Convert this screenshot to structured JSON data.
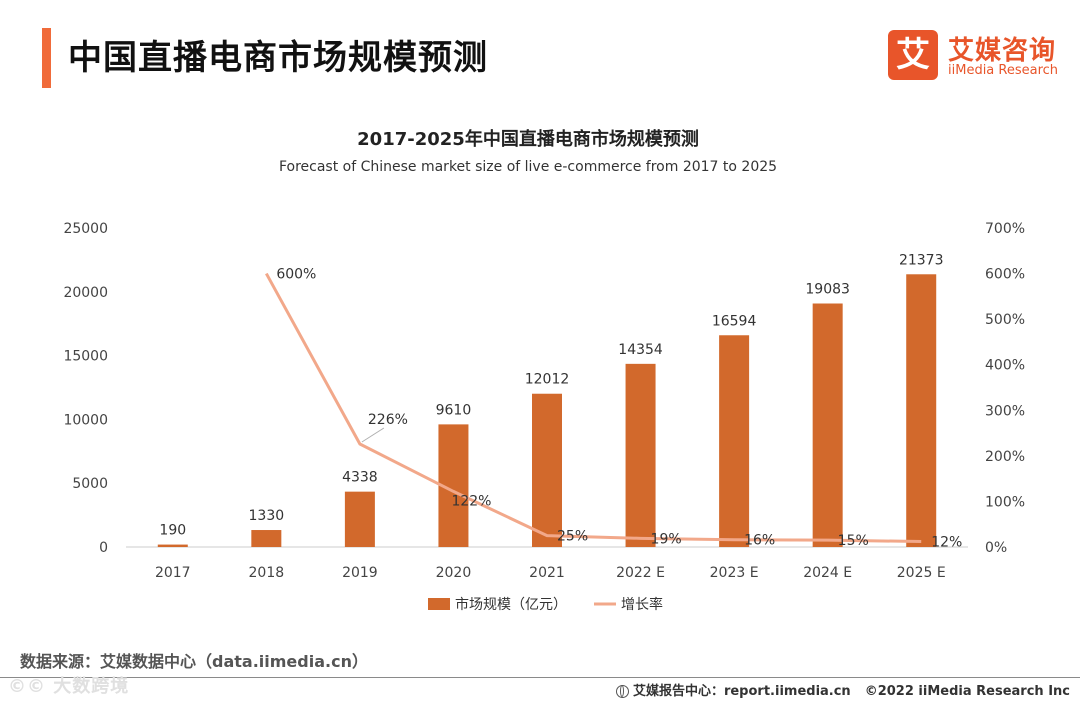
{
  "header": {
    "title": "中国直播电商市场规模预测",
    "accent_color": "#f06b3a"
  },
  "logo": {
    "mark": "艾",
    "name_cn": "艾媒咨询",
    "name_en": "iiMedia Research",
    "color": "#e8552a"
  },
  "chart_data": {
    "type": "bar",
    "title": "2017-2025年中国直播电商市场规模预测",
    "subtitle": "Forecast of Chinese market size of live e-commerce from 2017 to 2025",
    "categories": [
      "2017",
      "2018",
      "2019",
      "2020",
      "2021",
      "2022 E",
      "2023 E",
      "2024 E",
      "2025 E"
    ],
    "series": [
      {
        "name": "市场规模（亿元）",
        "type": "bar",
        "axis": "left",
        "color": "#d2692c",
        "values": [
          190,
          1330,
          4338,
          9610,
          12012,
          14354,
          16594,
          19083,
          21373
        ],
        "labels": [
          "190",
          "1330",
          "4338",
          "9610",
          "12012",
          "14354",
          "16594",
          "19083",
          "21373"
        ]
      },
      {
        "name": "增长率",
        "type": "line",
        "axis": "right",
        "color": "#f2a88a",
        "values": [
          null,
          600,
          226,
          122,
          25,
          19,
          16,
          15,
          12
        ],
        "labels": [
          null,
          "600%",
          "226%",
          "122%",
          "25%",
          "19%",
          "16%",
          "15%",
          "12%"
        ]
      }
    ],
    "y_left": {
      "min": 0,
      "max": 25000,
      "ticks": [
        "0",
        "5000",
        "10000",
        "15000",
        "20000",
        "25000"
      ]
    },
    "y_right": {
      "min": 0,
      "max": 700,
      "ticks": [
        "0%",
        "100%",
        "200%",
        "300%",
        "400%",
        "500%",
        "600%",
        "700%"
      ]
    },
    "grid": false,
    "legend_position": "bottom"
  },
  "source": "数据来源：艾媒数据中心（data.iimedia.cn）",
  "watermark": "©© 大数跨境",
  "footer": {
    "report_center": "艾媒报告中心：report.iimedia.cn",
    "copyright": "©2022  iiMedia Research  Inc"
  }
}
